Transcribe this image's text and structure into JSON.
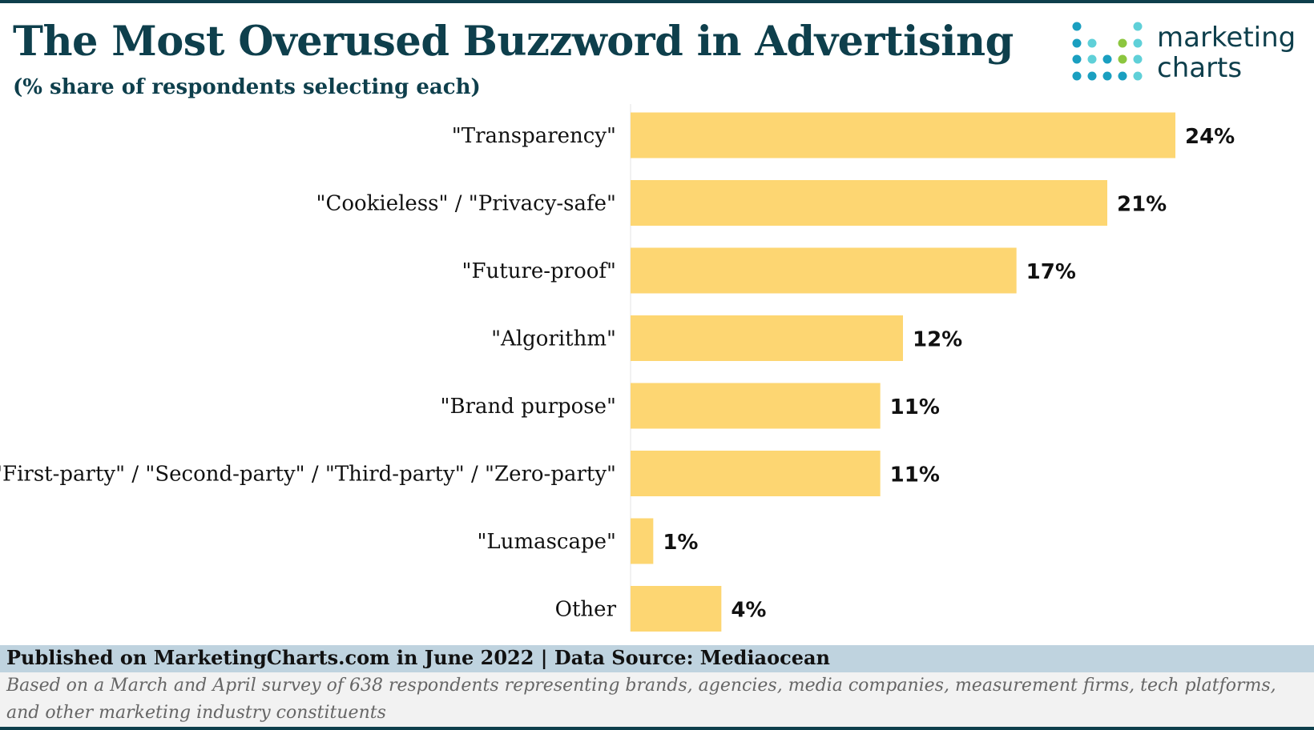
{
  "title": "The Most Overused Buzzword in Advertising",
  "subtitle": "(% share of respondents selecting each)",
  "logo": {
    "line1": "marketing",
    "line2": "charts",
    "colors": {
      "navy": "#0e3f4c",
      "blue": "#1a9fc0",
      "teal": "#5fd0d8",
      "green": "#8cc63f"
    }
  },
  "colors": {
    "bar": "#fdd672",
    "title": "#0e3f4c",
    "footer_band": "#bfd3df"
  },
  "footer": {
    "source": "Published on MarketingCharts.com in June 2022 | Data Source: Mediaocean",
    "note": "Based on a March and April survey of 638 respondents representing brands, agencies, media companies, measurement firms, tech platforms, and other marketing industry constituents"
  },
  "chart_data": {
    "type": "bar",
    "orientation": "horizontal",
    "categories": [
      "\"Transparency\"",
      "\"Cookieless\" / \"Privacy-safe\"",
      "\"Future-proof\"",
      "\"Algorithm\"",
      "\"Brand purpose\"",
      "\"First-party\" / \"Second-party\" / \"Third-party\" / \"Zero-party\"",
      "\"Lumascape\"",
      "Other"
    ],
    "values": [
      24,
      21,
      17,
      12,
      11,
      11,
      1,
      4
    ],
    "value_labels": [
      "24%",
      "21%",
      "17%",
      "12%",
      "11%",
      "11%",
      "1%",
      "4%"
    ],
    "unit": "%",
    "xlim": [
      0,
      24
    ],
    "grid": false
  }
}
